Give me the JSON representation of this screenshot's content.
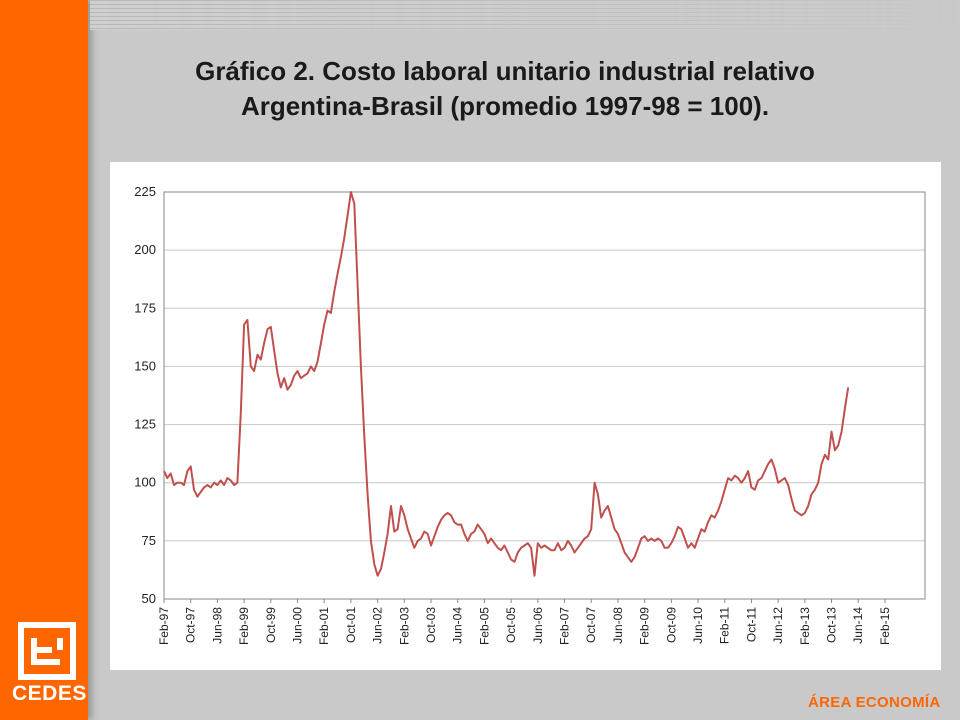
{
  "title": {
    "line1": "Gráfico 2. Costo laboral unitario industrial relativo",
    "line2": "Argentina-Brasil  (promedio 1997-98 = 100)."
  },
  "logo": {
    "text": "CEDES"
  },
  "footer": {
    "label": "ÁREA ECONOMÍA"
  },
  "colors": {
    "accent": "#ff6600",
    "series": "#c0504d",
    "background": "#c9c9c9"
  },
  "chart_data": {
    "type": "line",
    "title": "Gráfico 2. Costo laboral unitario industrial relativo Argentina-Brasil  (promedio 1997-98 = 100).",
    "xlabel": "",
    "ylabel": "",
    "ylim": [
      50,
      225
    ],
    "yticks": [
      50,
      75,
      100,
      125,
      150,
      175,
      200,
      225
    ],
    "grid": true,
    "legend": "none",
    "x_start": "Feb-97",
    "x_end": "Jan-16",
    "x_tick_labels": [
      "Feb-97",
      "Oct-97",
      "Jun-98",
      "Feb-99",
      "Oct-99",
      "Jun-00",
      "Feb-01",
      "Oct-01",
      "Jun-02",
      "Feb-03",
      "Oct-03",
      "Jun-04",
      "Feb-05",
      "Oct-05",
      "Jun-06",
      "Feb-07",
      "Oct-07",
      "Jun-08",
      "Feb-09",
      "Oct-09",
      "Jun-10",
      "Feb-11",
      "Oct-11",
      "Jun-12",
      "Feb-13",
      "Oct-13",
      "Jun-14",
      "Feb-15"
    ],
    "series": [
      {
        "values": [
          [
            0,
            105
          ],
          [
            1,
            102
          ],
          [
            2,
            104
          ],
          [
            3,
            99
          ],
          [
            4,
            100
          ],
          [
            5,
            100
          ],
          [
            6,
            99
          ],
          [
            7,
            105
          ],
          [
            8,
            107
          ],
          [
            9,
            97
          ],
          [
            10,
            94
          ],
          [
            11,
            96
          ],
          [
            12,
            98
          ],
          [
            13,
            99
          ],
          [
            14,
            98
          ],
          [
            15,
            100
          ],
          [
            16,
            99
          ],
          [
            17,
            101
          ],
          [
            18,
            99
          ],
          [
            19,
            102
          ],
          [
            20,
            101
          ],
          [
            21,
            99
          ],
          [
            22,
            100
          ],
          [
            23,
            130
          ],
          [
            24,
            168
          ],
          [
            25,
            170
          ],
          [
            26,
            150
          ],
          [
            27,
            148
          ],
          [
            28,
            155
          ],
          [
            29,
            153
          ],
          [
            30,
            160
          ],
          [
            31,
            166
          ],
          [
            32,
            167
          ],
          [
            33,
            157
          ],
          [
            34,
            147
          ],
          [
            35,
            141
          ],
          [
            36,
            145
          ],
          [
            37,
            140
          ],
          [
            38,
            142
          ],
          [
            39,
            146
          ],
          [
            40,
            148
          ],
          [
            41,
            145
          ],
          [
            42,
            146
          ],
          [
            43,
            147
          ],
          [
            44,
            150
          ],
          [
            45,
            148
          ],
          [
            46,
            152
          ],
          [
            47,
            160
          ],
          [
            48,
            168
          ],
          [
            49,
            174
          ],
          [
            50,
            173
          ],
          [
            51,
            182
          ],
          [
            52,
            190
          ],
          [
            53,
            197
          ],
          [
            54,
            205
          ],
          [
            55,
            215
          ],
          [
            56,
            225
          ],
          [
            57,
            220
          ],
          [
            58,
            185
          ],
          [
            59,
            150
          ],
          [
            60,
            120
          ],
          [
            61,
            95
          ],
          [
            62,
            75
          ],
          [
            63,
            65
          ],
          [
            64,
            60
          ],
          [
            65,
            63
          ],
          [
            66,
            70
          ],
          [
            67,
            78
          ],
          [
            68,
            90
          ],
          [
            69,
            79
          ],
          [
            70,
            80
          ],
          [
            71,
            90
          ],
          [
            72,
            86
          ],
          [
            73,
            80
          ],
          [
            74,
            76
          ],
          [
            75,
            72
          ],
          [
            76,
            75
          ],
          [
            77,
            76
          ],
          [
            78,
            79
          ],
          [
            79,
            78
          ],
          [
            80,
            73
          ],
          [
            81,
            77
          ],
          [
            82,
            81
          ],
          [
            83,
            84
          ],
          [
            84,
            86
          ],
          [
            85,
            87
          ],
          [
            86,
            86
          ],
          [
            87,
            83
          ],
          [
            88,
            82
          ],
          [
            89,
            82
          ],
          [
            90,
            78
          ],
          [
            91,
            75
          ],
          [
            92,
            78
          ],
          [
            93,
            79
          ],
          [
            94,
            82
          ],
          [
            95,
            80
          ],
          [
            96,
            78
          ],
          [
            97,
            74
          ],
          [
            98,
            76
          ],
          [
            99,
            74
          ],
          [
            100,
            72
          ],
          [
            101,
            71
          ],
          [
            102,
            73
          ],
          [
            103,
            70
          ],
          [
            104,
            67
          ],
          [
            105,
            66
          ],
          [
            106,
            70
          ],
          [
            107,
            72
          ],
          [
            108,
            73
          ],
          [
            109,
            74
          ],
          [
            110,
            72
          ],
          [
            111,
            60
          ],
          [
            112,
            74
          ],
          [
            113,
            72
          ],
          [
            114,
            73
          ],
          [
            115,
            72
          ],
          [
            116,
            71
          ],
          [
            117,
            71
          ],
          [
            118,
            74
          ],
          [
            119,
            71
          ],
          [
            120,
            72
          ],
          [
            121,
            75
          ],
          [
            122,
            73
          ],
          [
            123,
            70
          ],
          [
            124,
            72
          ],
          [
            125,
            74
          ],
          [
            126,
            76
          ],
          [
            127,
            77
          ],
          [
            128,
            80
          ],
          [
            129,
            100
          ],
          [
            130,
            95
          ],
          [
            131,
            85
          ],
          [
            132,
            88
          ],
          [
            133,
            90
          ],
          [
            134,
            85
          ],
          [
            135,
            80
          ],
          [
            136,
            78
          ],
          [
            137,
            74
          ],
          [
            138,
            70
          ],
          [
            139,
            68
          ],
          [
            140,
            66
          ],
          [
            141,
            68
          ],
          [
            142,
            72
          ],
          [
            143,
            76
          ],
          [
            144,
            77
          ],
          [
            145,
            75
          ],
          [
            146,
            76
          ],
          [
            147,
            75
          ],
          [
            148,
            76
          ],
          [
            149,
            75
          ],
          [
            150,
            72
          ],
          [
            151,
            72
          ],
          [
            152,
            74
          ],
          [
            153,
            77
          ],
          [
            154,
            81
          ],
          [
            155,
            80
          ],
          [
            156,
            76
          ],
          [
            157,
            72
          ],
          [
            158,
            74
          ],
          [
            159,
            72
          ],
          [
            160,
            76
          ],
          [
            161,
            80
          ],
          [
            162,
            79
          ],
          [
            163,
            83
          ],
          [
            164,
            86
          ],
          [
            165,
            85
          ],
          [
            166,
            88
          ],
          [
            167,
            92
          ],
          [
            168,
            97
          ],
          [
            169,
            102
          ],
          [
            170,
            101
          ],
          [
            171,
            103
          ],
          [
            172,
            102
          ],
          [
            173,
            100
          ],
          [
            174,
            102
          ],
          [
            175,
            105
          ],
          [
            176,
            98
          ],
          [
            177,
            97
          ],
          [
            178,
            101
          ],
          [
            179,
            102
          ],
          [
            180,
            105
          ],
          [
            181,
            108
          ],
          [
            182,
            110
          ],
          [
            183,
            106
          ],
          [
            184,
            100
          ],
          [
            185,
            101
          ],
          [
            186,
            102
          ],
          [
            187,
            99
          ],
          [
            188,
            93
          ],
          [
            189,
            88
          ],
          [
            190,
            87
          ],
          [
            191,
            86
          ],
          [
            192,
            87
          ],
          [
            193,
            90
          ],
          [
            194,
            95
          ],
          [
            195,
            97
          ],
          [
            196,
            100
          ],
          [
            197,
            108
          ],
          [
            198,
            112
          ],
          [
            199,
            110
          ],
          [
            200,
            122
          ],
          [
            201,
            114
          ],
          [
            202,
            116
          ],
          [
            203,
            122
          ],
          [
            204,
            132
          ],
          [
            205,
            141
          ]
        ]
      }
    ]
  }
}
